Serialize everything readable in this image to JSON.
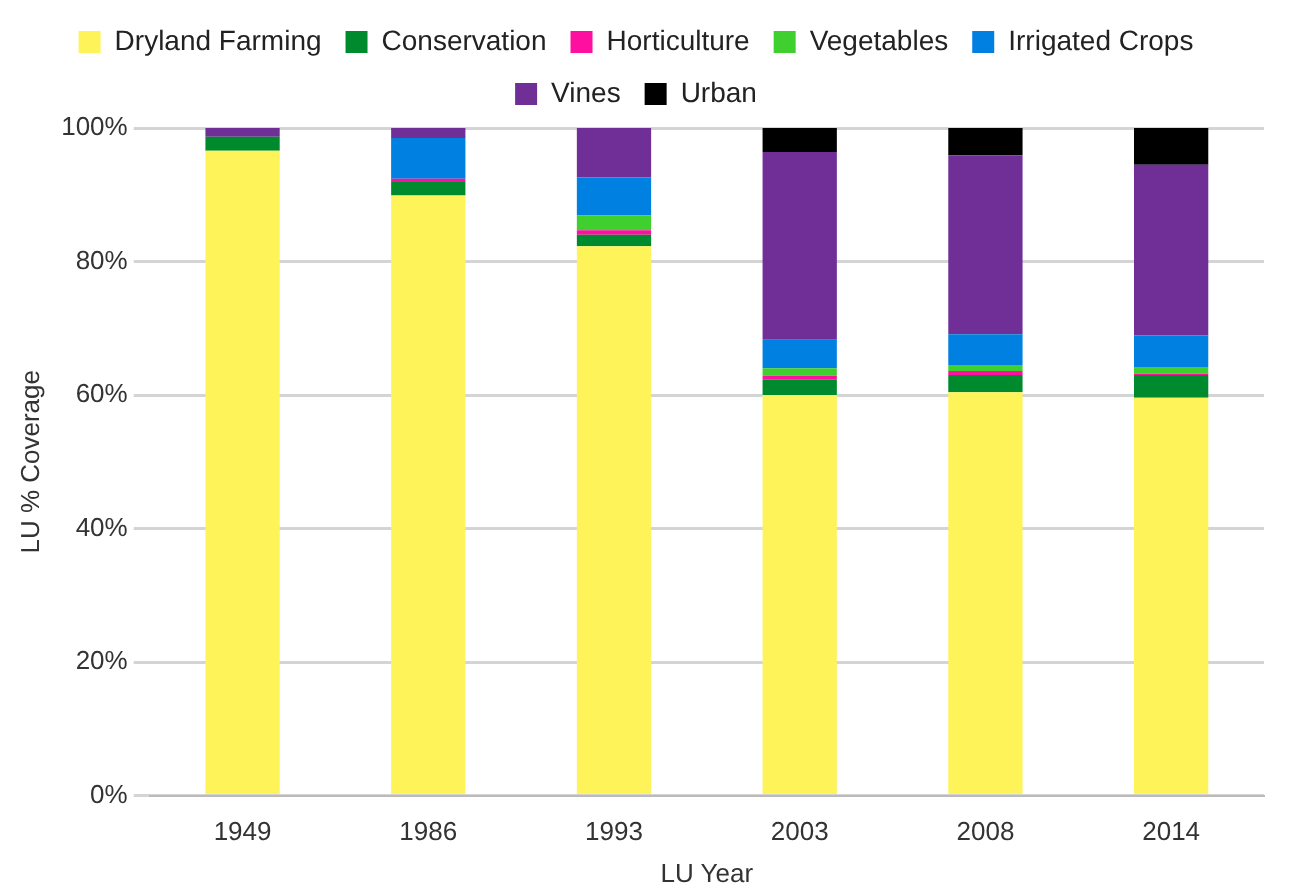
{
  "chart_data": {
    "type": "bar",
    "stacked": true,
    "xlabel": "LU Year",
    "ylabel": "LU % Coverage",
    "categories": [
      "1949",
      "1986",
      "1993",
      "2003",
      "2008",
      "2014"
    ],
    "series": [
      {
        "name": "Dryland Farming",
        "color": "#fff35a",
        "values": [
          96.6,
          89.9,
          82.3,
          60.0,
          60.4,
          59.6
        ]
      },
      {
        "name": "Conservation",
        "color": "#008a2e",
        "values": [
          2.1,
          2.0,
          1.7,
          2.3,
          2.6,
          3.4
        ]
      },
      {
        "name": "Horticulture",
        "color": "#ff0fa0",
        "values": [
          0,
          0.5,
          0.7,
          0.6,
          0.6,
          0.2
        ]
      },
      {
        "name": "Vegetables",
        "color": "#3fcf2f",
        "values": [
          0,
          0,
          2.2,
          1.1,
          0.9,
          1.0
        ]
      },
      {
        "name": "Irrigated Crops",
        "color": "#0080e0",
        "values": [
          0,
          6.1,
          5.7,
          4.3,
          4.6,
          4.7
        ]
      },
      {
        "name": "Vines",
        "color": "#702f96",
        "values": [
          1.3,
          1.5,
          7.4,
          28.1,
          26.8,
          25.6
        ]
      },
      {
        "name": "Urban",
        "color": "#000000",
        "values": [
          0,
          0,
          0,
          3.6,
          4.1,
          5.5
        ]
      }
    ],
    "ylim": [
      0,
      100
    ],
    "yticks": [
      {
        "value": 0,
        "label": "0%"
      },
      {
        "value": 20,
        "label": "20%"
      },
      {
        "value": 40,
        "label": "40%"
      },
      {
        "value": 60,
        "label": "60%"
      },
      {
        "value": 80,
        "label": "80%"
      },
      {
        "value": 100,
        "label": "100%"
      }
    ],
    "grid": "y",
    "legend": "top"
  }
}
